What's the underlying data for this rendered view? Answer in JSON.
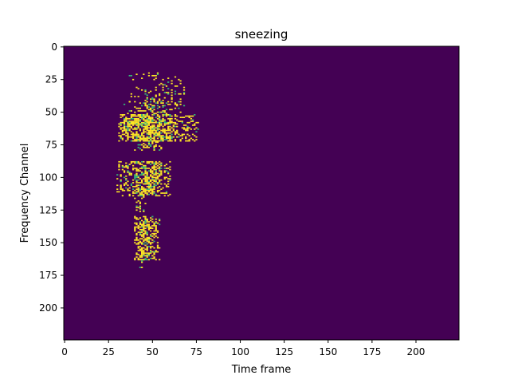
{
  "chart_data": {
    "type": "heatmap",
    "title": "sneezing",
    "xlabel": "Time frame",
    "ylabel": "Frequency Channel",
    "xlim": [
      -0.5,
      224.5
    ],
    "ylim": [
      224.5,
      -0.5
    ],
    "x_ticks": [
      0,
      25,
      50,
      75,
      100,
      125,
      150,
      175,
      200
    ],
    "y_ticks": [
      0,
      25,
      50,
      75,
      100,
      125,
      150,
      175,
      200
    ],
    "rows": 225,
    "cols": 225,
    "colormap": "viridis",
    "background_color": "#440154",
    "active_color": "#fde725",
    "edge_color": "#35b779",
    "grid": false,
    "legend": "none",
    "active_regions": [
      {
        "f_min": 20,
        "f_max": 45,
        "t_min": 36,
        "t_max": 69,
        "t_center": 53,
        "density": 0.18
      },
      {
        "f_min": 42,
        "f_max": 52,
        "t_min": 34,
        "t_max": 68,
        "t_center": 52,
        "density": 0.32
      },
      {
        "f_min": 52,
        "f_max": 72,
        "t_min": 31,
        "t_max": 76,
        "t_center": 48,
        "density": 0.78
      },
      {
        "f_min": 72,
        "f_max": 79,
        "t_min": 40,
        "t_max": 55,
        "t_center": 47,
        "density": 0.45
      },
      {
        "f_min": 88,
        "f_max": 114,
        "t_min": 30,
        "t_max": 60,
        "t_center": 47,
        "density": 0.62
      },
      {
        "f_min": 114,
        "f_max": 126,
        "t_min": 40,
        "t_max": 46,
        "t_center": 43,
        "density": 0.35
      },
      {
        "f_min": 130,
        "f_max": 163,
        "t_min": 40,
        "t_max": 54,
        "t_center": 45,
        "density": 0.7
      },
      {
        "f_min": 163,
        "f_max": 169,
        "t_min": 42,
        "t_max": 46,
        "t_center": 44,
        "density": 0.3
      }
    ]
  }
}
